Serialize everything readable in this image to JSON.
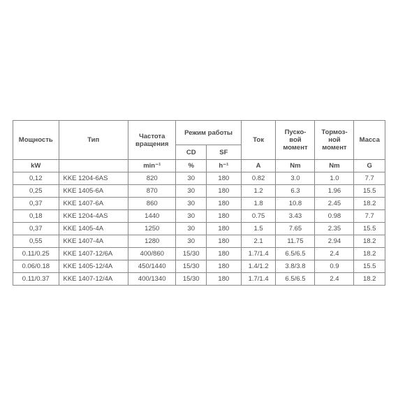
{
  "table": {
    "type": "table",
    "background_color": "#ffffff",
    "border_color": "#888888",
    "text_color": "#4a4a4a",
    "fontsize": 9.5,
    "headers": {
      "power": "Мощность",
      "type": "Тип",
      "freq": "Частота вращения",
      "mode": "Режим работы",
      "mode_cd": "CD",
      "mode_sf": "SF",
      "current": "Ток",
      "start_torque": "Пуско-вой момент",
      "brake_torque": "Тормоз-ной момент",
      "mass": "Масса"
    },
    "units": {
      "power": "kW",
      "type": "",
      "freq": "min⁻¹",
      "cd": "%",
      "sf": "h⁻¹",
      "current": "A",
      "start_torque": "Nm",
      "brake_torque": "Nm",
      "mass": "G"
    },
    "rows": [
      {
        "power": "0,12",
        "type": "KKE 1204-6AS",
        "freq": "820",
        "cd": "30",
        "sf": "180",
        "current": "0.82",
        "start": "3.0",
        "brake": "1.0",
        "mass": "7.7"
      },
      {
        "power": "0,25",
        "type": "KKE 1405-6A",
        "freq": "870",
        "cd": "30",
        "sf": "180",
        "current": "1.2",
        "start": "6.3",
        "brake": "1.96",
        "mass": "15.5"
      },
      {
        "power": "0,37",
        "type": "KKE 1407-6A",
        "freq": "860",
        "cd": "30",
        "sf": "180",
        "current": "1.8",
        "start": "10.8",
        "brake": "2.45",
        "mass": "18.2"
      },
      {
        "power": "0,18",
        "type": "KKE 1204-4AS",
        "freq": "1440",
        "cd": "30",
        "sf": "180",
        "current": "0.75",
        "start": "3.43",
        "brake": "0.98",
        "mass": "7.7"
      },
      {
        "power": "0,37",
        "type": "KKE 1405-4A",
        "freq": "1250",
        "cd": "30",
        "sf": "180",
        "current": "1.5",
        "start": "7.65",
        "brake": "2.35",
        "mass": "15.5"
      },
      {
        "power": "0,55",
        "type": "KKE 1407-4A",
        "freq": "1280",
        "cd": "30",
        "sf": "180",
        "current": "2.1",
        "start": "11.75",
        "brake": "2.94",
        "mass": "18.2"
      },
      {
        "power": "0.11/0.25",
        "type": "KKE 1407-12/6A",
        "freq": "400/860",
        "cd": "15/30",
        "sf": "180",
        "current": "1.7/1.4",
        "start": "6.5/6.5",
        "brake": "2.4",
        "mass": "18.2"
      },
      {
        "power": "0.06/0.18",
        "type": "KKE 1405-12/4A",
        "freq": "450/1440",
        "cd": "15/30",
        "sf": "180",
        "current": "1.4/1.2",
        "start": "3.8/3.8",
        "brake": "0.9",
        "mass": "15.5"
      },
      {
        "power": "0.11/0.37",
        "type": "KKE 1407-12/4A",
        "freq": "400/1340",
        "cd": "15/30",
        "sf": "180",
        "current": "1.7/1.4",
        "start": "6.5/6.5",
        "brake": "2.4",
        "mass": "18.2"
      }
    ]
  }
}
